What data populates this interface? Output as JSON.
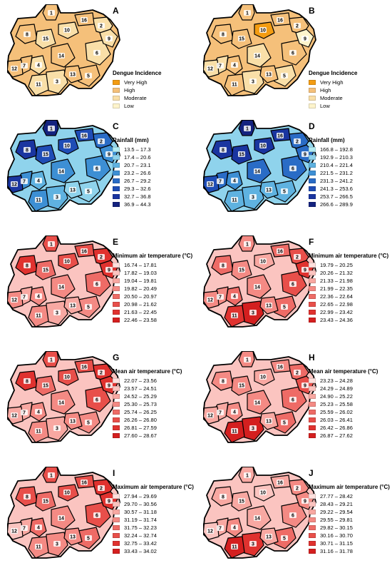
{
  "panels": [
    {
      "letter": "A",
      "title": "Dengue Incidence",
      "legend": [
        {
          "label": "Very High",
          "color": "#f39c12"
        },
        {
          "label": "High",
          "color": "#f5c07a"
        },
        {
          "label": "Moderate",
          "color": "#f9dfa8"
        },
        {
          "label": "Low",
          "color": "#fdf4cc"
        }
      ],
      "regions": [
        1,
        2,
        2,
        2,
        1,
        2,
        1,
        1,
        2,
        2,
        2,
        1,
        1,
        1,
        2,
        1
      ]
    },
    {
      "letter": "B",
      "title": "Dengue Incidence",
      "legend": [
        {
          "label": "Very High",
          "color": "#f39c12"
        },
        {
          "label": "High",
          "color": "#f5c07a"
        },
        {
          "label": "Moderate",
          "color": "#f9dfa8"
        },
        {
          "label": "Low",
          "color": "#fdf4cc"
        }
      ],
      "regions": [
        1,
        1,
        2,
        1,
        2,
        1,
        2,
        1,
        3,
        0,
        1,
        2,
        1,
        2,
        1,
        1
      ]
    },
    {
      "letter": "C",
      "title": "Rainfall (mm)",
      "legend": [
        {
          "label": "13.5 – 17.3",
          "color": "#b3ecf2"
        },
        {
          "label": "17.4 – 20.6",
          "color": "#8fd3ec"
        },
        {
          "label": "20.7 – 23.1",
          "color": "#5fb2e0"
        },
        {
          "label": "23.2 – 26.6",
          "color": "#3d8fd4"
        },
        {
          "label": "26.7 – 29.2",
          "color": "#2a6cc6"
        },
        {
          "label": "29.3 – 32.6",
          "color": "#1f4db6"
        },
        {
          "label": "32.7 – 36.8",
          "color": "#1a35a0"
        },
        {
          "label": "36.9 – 44.3",
          "color": "#14237f"
        }
      ],
      "regions": [
        7,
        4,
        2,
        2,
        1,
        3,
        3,
        6,
        3,
        5,
        3,
        6,
        1,
        3,
        5,
        5
      ]
    },
    {
      "letter": "D",
      "title": "Rainfall (mm)",
      "legend": [
        {
          "label": "166.8 – 192.8",
          "color": "#b3ecf2"
        },
        {
          "label": "192.9 – 210.3",
          "color": "#8fd3ec"
        },
        {
          "label": "210.4 – 221.4",
          "color": "#5fb2e0"
        },
        {
          "label": "221.5 – 231.2",
          "color": "#3d8fd4"
        },
        {
          "label": "231.3 – 241.2",
          "color": "#2a6cc6"
        },
        {
          "label": "241.3 – 253.6",
          "color": "#1f4db6"
        },
        {
          "label": "253.7 – 266.5",
          "color": "#1a35a0"
        },
        {
          "label": "266.6 – 289.9",
          "color": "#14237f"
        }
      ],
      "regions": [
        7,
        4,
        2,
        3,
        2,
        4,
        4,
        6,
        4,
        6,
        2,
        5,
        2,
        4,
        6,
        6
      ]
    },
    {
      "letter": "E",
      "title": "Minimum air temperature (°C)",
      "legend": [
        {
          "label": "16.74 – 17.81",
          "color": "#fde0dd"
        },
        {
          "label": "17.82 – 19.03",
          "color": "#fbc4c0"
        },
        {
          "label": "19.04 – 19.81",
          "color": "#f8a8a2"
        },
        {
          "label": "19.82 – 20.49",
          "color": "#f48a84"
        },
        {
          "label": "20.50 – 20.97",
          "color": "#ee6b66"
        },
        {
          "label": "20.98 – 21.62",
          "color": "#e84f4a"
        },
        {
          "label": "21.63 – 22.45",
          "color": "#e0322f"
        },
        {
          "label": "22.46 – 23.58",
          "color": "#d41f1f"
        }
      ],
      "regions": [
        5,
        6,
        2,
        3,
        3,
        4,
        2,
        6,
        6,
        5,
        3,
        3,
        2,
        3,
        4,
        5
      ]
    },
    {
      "letter": "F",
      "title": "Minimum air temperature (°C)",
      "legend": [
        {
          "label": "19.79 – 20.25",
          "color": "#fde0dd"
        },
        {
          "label": "20.26 – 21.32",
          "color": "#fbc4c0"
        },
        {
          "label": "21.33 – 21.98",
          "color": "#f8a8a2"
        },
        {
          "label": "21.99 – 22.35",
          "color": "#f48a84"
        },
        {
          "label": "22.36 – 22.64",
          "color": "#ee6b66"
        },
        {
          "label": "22.65 – 22.98",
          "color": "#e84f4a"
        },
        {
          "label": "22.99 – 23.42",
          "color": "#e0322f"
        },
        {
          "label": "23.43 – 24.36",
          "color": "#d41f1f"
        }
      ],
      "regions": [
        3,
        5,
        7,
        4,
        4,
        5,
        3,
        4,
        6,
        2,
        6,
        3,
        3,
        3,
        3,
        4
      ]
    },
    {
      "letter": "G",
      "title": "Mean air temperature (°C)",
      "legend": [
        {
          "label": "22.07 – 23.56",
          "color": "#fde0dd"
        },
        {
          "label": "23.57 – 24.51",
          "color": "#fbc4c0"
        },
        {
          "label": "24.52 – 25.29",
          "color": "#f8a8a2"
        },
        {
          "label": "25.30 – 25.73",
          "color": "#f48a84"
        },
        {
          "label": "25.74 – 26.25",
          "color": "#ee6b66"
        },
        {
          "label": "26.26 – 26.80",
          "color": "#e84f4a"
        },
        {
          "label": "26.81 – 27.59",
          "color": "#e0322f"
        },
        {
          "label": "27.60 – 28.67",
          "color": "#d41f1f"
        }
      ],
      "regions": [
        5,
        6,
        2,
        3,
        3,
        5,
        2,
        6,
        6,
        5,
        3,
        2,
        3,
        3,
        4,
        5
      ]
    },
    {
      "letter": "H",
      "title": "Mean air temperature (°C)",
      "legend": [
        {
          "label": "23.23 – 24.28",
          "color": "#fde0dd"
        },
        {
          "label": "24.29 – 24.89",
          "color": "#fbc4c0"
        },
        {
          "label": "24.90 – 25.22",
          "color": "#f8a8a2"
        },
        {
          "label": "25.23 – 25.58",
          "color": "#f48a84"
        },
        {
          "label": "25.59 – 26.02",
          "color": "#ee6b66"
        },
        {
          "label": "26.03 – 26.41",
          "color": "#e84f4a"
        },
        {
          "label": "26.42 – 26.86",
          "color": "#e0322f"
        },
        {
          "label": "26.87 – 27.62",
          "color": "#d41f1f"
        }
      ],
      "regions": [
        3,
        4,
        7,
        3,
        4,
        4,
        2,
        3,
        5,
        2,
        7,
        2,
        2,
        3,
        3,
        3
      ]
    },
    {
      "letter": "I",
      "title": "Maximum air temperature (°C)",
      "legend": [
        {
          "label": "27.94 – 29.69",
          "color": "#fde0dd"
        },
        {
          "label": "29.70 – 30.56",
          "color": "#fbc4c0"
        },
        {
          "label": "30.57 – 31.18",
          "color": "#f8a8a2"
        },
        {
          "label": "31.19 – 31.74",
          "color": "#f48a84"
        },
        {
          "label": "31.75 – 32.23",
          "color": "#ee6b66"
        },
        {
          "label": "32.24 – 32.74",
          "color": "#e84f4a"
        },
        {
          "label": "32.75 – 33.42",
          "color": "#e0322f"
        },
        {
          "label": "33.43 – 34.02",
          "color": "#d41f1f"
        }
      ],
      "regions": [
        5,
        6,
        3,
        4,
        4,
        5,
        2,
        5,
        6,
        5,
        3,
        1,
        3,
        3,
        4,
        5
      ]
    },
    {
      "letter": "J",
      "title": "Maximum air temperature (°C)",
      "legend": [
        {
          "label": "27.77 – 28.42",
          "color": "#fde0dd"
        },
        {
          "label": "28.43 – 29.21",
          "color": "#fbc4c0"
        },
        {
          "label": "29.22 – 29.54",
          "color": "#f8a8a2"
        },
        {
          "label": "29.55 – 29.81",
          "color": "#f48a84"
        },
        {
          "label": "29.82 – 30.15",
          "color": "#ee6b66"
        },
        {
          "label": "30.16 – 30.70",
          "color": "#e84f4a"
        },
        {
          "label": "30.71 – 31.15",
          "color": "#e0322f"
        },
        {
          "label": "31.16 – 31.78",
          "color": "#d41f1f"
        }
      ],
      "regions": [
        2,
        3,
        6,
        3,
        4,
        3,
        2,
        2,
        3,
        1,
        7,
        1,
        2,
        2,
        2,
        2
      ]
    }
  ],
  "region_labels": [
    "1",
    "2",
    "3",
    "4",
    "5",
    "6",
    "7",
    "8",
    "9",
    "10",
    "11",
    "12",
    "13",
    "14",
    "15",
    "16"
  ]
}
